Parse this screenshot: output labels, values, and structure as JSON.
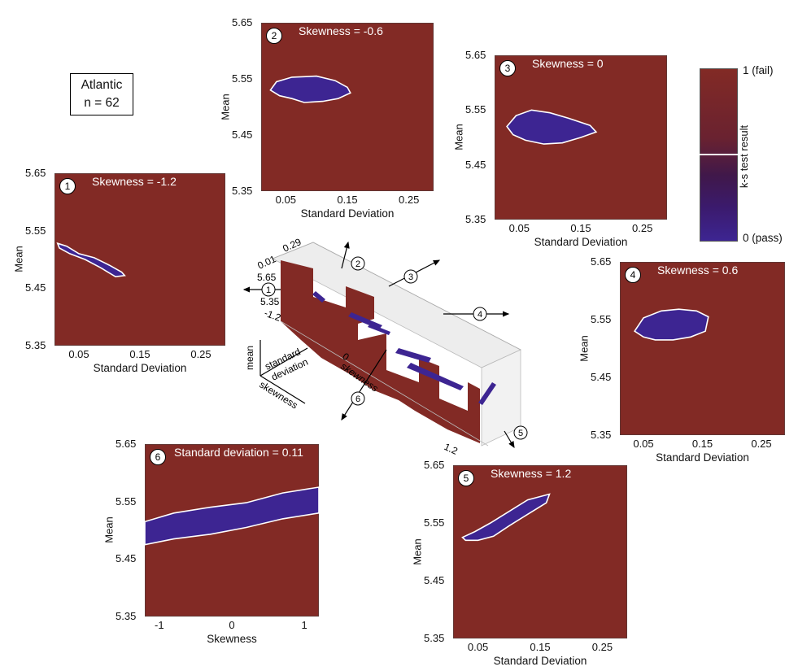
{
  "info_box": {
    "line1": "Atlantic",
    "line2": "n = 62"
  },
  "colorbar": {
    "title": "k-s test result",
    "top_label": "1 (fail)",
    "bottom_label": "0 (pass)",
    "colors": {
      "fail": "#822a25",
      "pass": "#3d2592"
    }
  },
  "chart_data": [
    {
      "id": 1,
      "type": "heatmap",
      "title": "Skewness = -1.2",
      "xlabel": "Standard Deviation",
      "ylabel": "Mean",
      "xticks": [
        "0.05",
        "0.15",
        "0.25"
      ],
      "yticks": [
        "5.65",
        "5.55",
        "5.45",
        "5.35"
      ],
      "xlim": [
        0.01,
        0.29
      ],
      "ylim": [
        5.35,
        5.65
      ],
      "pass_region": [
        [
          0.015,
          5.528
        ],
        [
          0.03,
          5.523
        ],
        [
          0.05,
          5.51
        ],
        [
          0.075,
          5.503
        ],
        [
          0.1,
          5.49
        ],
        [
          0.12,
          5.478
        ],
        [
          0.125,
          5.472
        ],
        [
          0.11,
          5.47
        ],
        [
          0.085,
          5.486
        ],
        [
          0.06,
          5.5
        ],
        [
          0.035,
          5.51
        ],
        [
          0.018,
          5.52
        ]
      ]
    },
    {
      "id": 2,
      "type": "heatmap",
      "title": "Skewness = -0.6",
      "xlabel": "Standard Deviation",
      "ylabel": "Mean",
      "xticks": [
        "0.05",
        "0.15",
        "0.25"
      ],
      "yticks": [
        "5.65",
        "5.55",
        "5.45",
        "5.35"
      ],
      "xlim": [
        0.01,
        0.29
      ],
      "ylim": [
        5.35,
        5.65
      ],
      "pass_region": [
        [
          0.025,
          5.53
        ],
        [
          0.035,
          5.545
        ],
        [
          0.06,
          5.553
        ],
        [
          0.1,
          5.555
        ],
        [
          0.13,
          5.547
        ],
        [
          0.15,
          5.535
        ],
        [
          0.155,
          5.525
        ],
        [
          0.135,
          5.515
        ],
        [
          0.11,
          5.51
        ],
        [
          0.08,
          5.508
        ],
        [
          0.06,
          5.515
        ],
        [
          0.04,
          5.52
        ]
      ]
    },
    {
      "id": 3,
      "type": "heatmap",
      "title": "Skewness = 0",
      "xlabel": "Standard Deviation",
      "ylabel": "Mean",
      "xticks": [
        "0.05",
        "0.15",
        "0.25"
      ],
      "yticks": [
        "5.65",
        "5.55",
        "5.45",
        "5.35"
      ],
      "xlim": [
        0.01,
        0.29
      ],
      "ylim": [
        5.35,
        5.65
      ],
      "pass_region": [
        [
          0.03,
          5.52
        ],
        [
          0.045,
          5.54
        ],
        [
          0.07,
          5.55
        ],
        [
          0.1,
          5.545
        ],
        [
          0.13,
          5.535
        ],
        [
          0.165,
          5.522
        ],
        [
          0.175,
          5.51
        ],
        [
          0.15,
          5.5
        ],
        [
          0.12,
          5.49
        ],
        [
          0.09,
          5.488
        ],
        [
          0.06,
          5.495
        ],
        [
          0.04,
          5.505
        ]
      ]
    },
    {
      "id": 4,
      "type": "heatmap",
      "title": "Skewness = 0.6",
      "xlabel": "Standard Deviation",
      "ylabel": "Mean",
      "xticks": [
        "0.05",
        "0.15",
        "0.25"
      ],
      "yticks": [
        "5.65",
        "5.55",
        "5.45",
        "5.35"
      ],
      "xlim": [
        0.01,
        0.29
      ],
      "ylim": [
        5.35,
        5.65
      ],
      "pass_region": [
        [
          0.035,
          5.53
        ],
        [
          0.05,
          5.553
        ],
        [
          0.08,
          5.565
        ],
        [
          0.11,
          5.568
        ],
        [
          0.14,
          5.565
        ],
        [
          0.16,
          5.555
        ],
        [
          0.155,
          5.53
        ],
        [
          0.13,
          5.52
        ],
        [
          0.1,
          5.515
        ],
        [
          0.07,
          5.515
        ],
        [
          0.05,
          5.52
        ]
      ]
    },
    {
      "id": 5,
      "type": "heatmap",
      "title": "Skewness = 1.2",
      "xlabel": "Standard Deviation",
      "ylabel": "Mean",
      "xticks": [
        "0.05",
        "0.15",
        "0.25"
      ],
      "yticks": [
        "5.65",
        "5.55",
        "5.45",
        "5.35"
      ],
      "xlim": [
        0.01,
        0.29
      ],
      "ylim": [
        5.35,
        5.65
      ],
      "pass_region": [
        [
          0.025,
          5.525
        ],
        [
          0.045,
          5.535
        ],
        [
          0.07,
          5.55
        ],
        [
          0.1,
          5.57
        ],
        [
          0.13,
          5.59
        ],
        [
          0.165,
          5.6
        ],
        [
          0.16,
          5.585
        ],
        [
          0.13,
          5.565
        ],
        [
          0.1,
          5.545
        ],
        [
          0.075,
          5.527
        ],
        [
          0.05,
          5.52
        ],
        [
          0.03,
          5.52
        ]
      ]
    },
    {
      "id": 6,
      "type": "heatmap",
      "title": "Standard deviation = 0.11",
      "xlabel": "Skewness",
      "ylabel": "Mean",
      "xticks": [
        "-1",
        "0",
        "1"
      ],
      "yticks": [
        "5.65",
        "5.55",
        "5.45",
        "5.35"
      ],
      "xlim": [
        -1.2,
        1.2
      ],
      "ylim": [
        5.35,
        5.65
      ],
      "pass_region": [
        [
          -1.2,
          5.515
        ],
        [
          -0.8,
          5.53
        ],
        [
          -0.3,
          5.54
        ],
        [
          0.2,
          5.548
        ],
        [
          0.7,
          5.565
        ],
        [
          1.2,
          5.575
        ],
        [
          1.2,
          5.53
        ],
        [
          0.7,
          5.52
        ],
        [
          0.2,
          5.505
        ],
        [
          -0.3,
          5.493
        ],
        [
          -0.8,
          5.485
        ],
        [
          -1.2,
          5.475
        ]
      ]
    }
  ],
  "cube": {
    "axis_labels": {
      "mean": "mean",
      "standard_deviation_line1": "standard",
      "standard_deviation_line2": "deviation",
      "skewness": "skewness"
    },
    "tick_labels": {
      "sd_low": "0.01",
      "sd_high": "0.29",
      "mean_high": "5.65",
      "mean_low": "5.35",
      "skew_low": "-1.2",
      "skew_mid": "0",
      "skew_high": "1.2"
    },
    "markers": [
      "1",
      "2",
      "3",
      "4",
      "5",
      "6"
    ]
  }
}
